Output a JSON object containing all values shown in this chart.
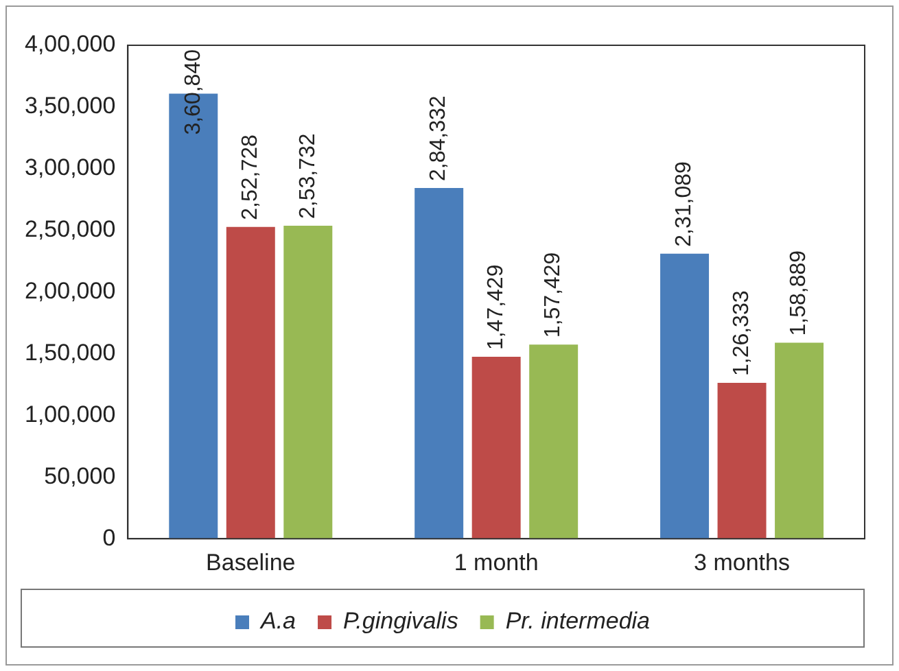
{
  "chart_data": {
    "type": "bar",
    "categories": [
      "Baseline",
      "1 month",
      "3 months"
    ],
    "series": [
      {
        "name": "A.a",
        "color": "#4a7ebb",
        "values": [
          360840,
          284332,
          231089
        ],
        "value_labels": [
          "3,60,840",
          "2,84,332",
          "2,31,089"
        ]
      },
      {
        "name": "P.gingivalis",
        "color": "#be4b48",
        "values": [
          252728,
          147429,
          126333
        ],
        "value_labels": [
          "2,52,728",
          "1,47,429",
          "1,26,333"
        ]
      },
      {
        "name": "Pr. intermedia",
        "color": "#98b954",
        "values": [
          253732,
          157429,
          158889
        ],
        "value_labels": [
          "2,53,732",
          "1,57,429",
          "1,58,889"
        ]
      }
    ],
    "ylim": [
      0,
      400000
    ],
    "yticks": [
      {
        "value": 0,
        "label": "0"
      },
      {
        "value": 50000,
        "label": "50,000"
      },
      {
        "value": 100000,
        "label": "1,00,000"
      },
      {
        "value": 150000,
        "label": "1,50,000"
      },
      {
        "value": 200000,
        "label": "2,00,000"
      },
      {
        "value": 250000,
        "label": "2,50,000"
      },
      {
        "value": 300000,
        "label": "3,00,000"
      },
      {
        "value": 350000,
        "label": "3,50,000"
      },
      {
        "value": 400000,
        "label": "4,00,000"
      }
    ],
    "legend": "bottom",
    "grid": false
  }
}
